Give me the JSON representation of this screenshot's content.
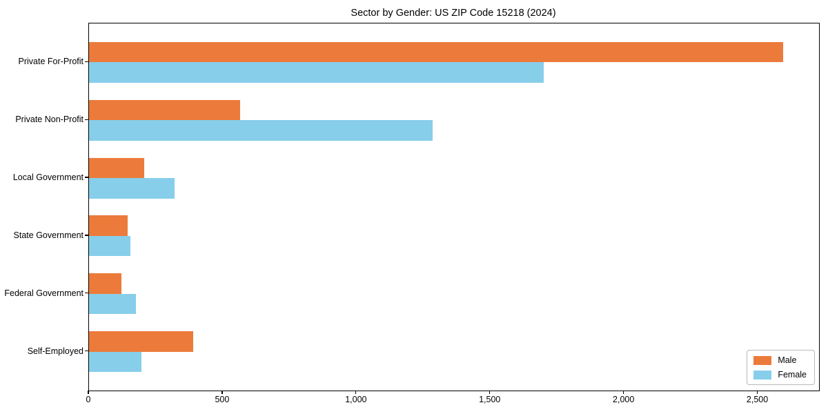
{
  "chart_data": {
    "type": "bar",
    "orientation": "horizontal",
    "title": "Sector by Gender: US ZIP Code 15218 (2024)",
    "categories": [
      "Private For-Profit",
      "Private Non-Profit",
      "Local Government",
      "State Government",
      "Federal Government",
      "Self-Employed"
    ],
    "series": [
      {
        "name": "Male",
        "color": "#ec7b3b",
        "values": [
          2595,
          565,
          205,
          145,
          120,
          390
        ]
      },
      {
        "name": "Female",
        "color": "#87ceeb",
        "values": [
          1700,
          1285,
          320,
          155,
          175,
          195
        ]
      }
    ],
    "xlabel": "",
    "ylabel": "",
    "xlim": [
      0,
      2728
    ],
    "xticks": [
      {
        "value": 0,
        "label": "0"
      },
      {
        "value": 500,
        "label": "500"
      },
      {
        "value": 1000,
        "label": "1,000"
      },
      {
        "value": 1500,
        "label": "1,500"
      },
      {
        "value": 2000,
        "label": "2,000"
      },
      {
        "value": 2500,
        "label": "2,500"
      }
    ],
    "grid": false,
    "background_color": "#ffffff",
    "axis_color": "#000000",
    "legend": {
      "position": "lower right",
      "entries": [
        "Male",
        "Female"
      ]
    }
  }
}
